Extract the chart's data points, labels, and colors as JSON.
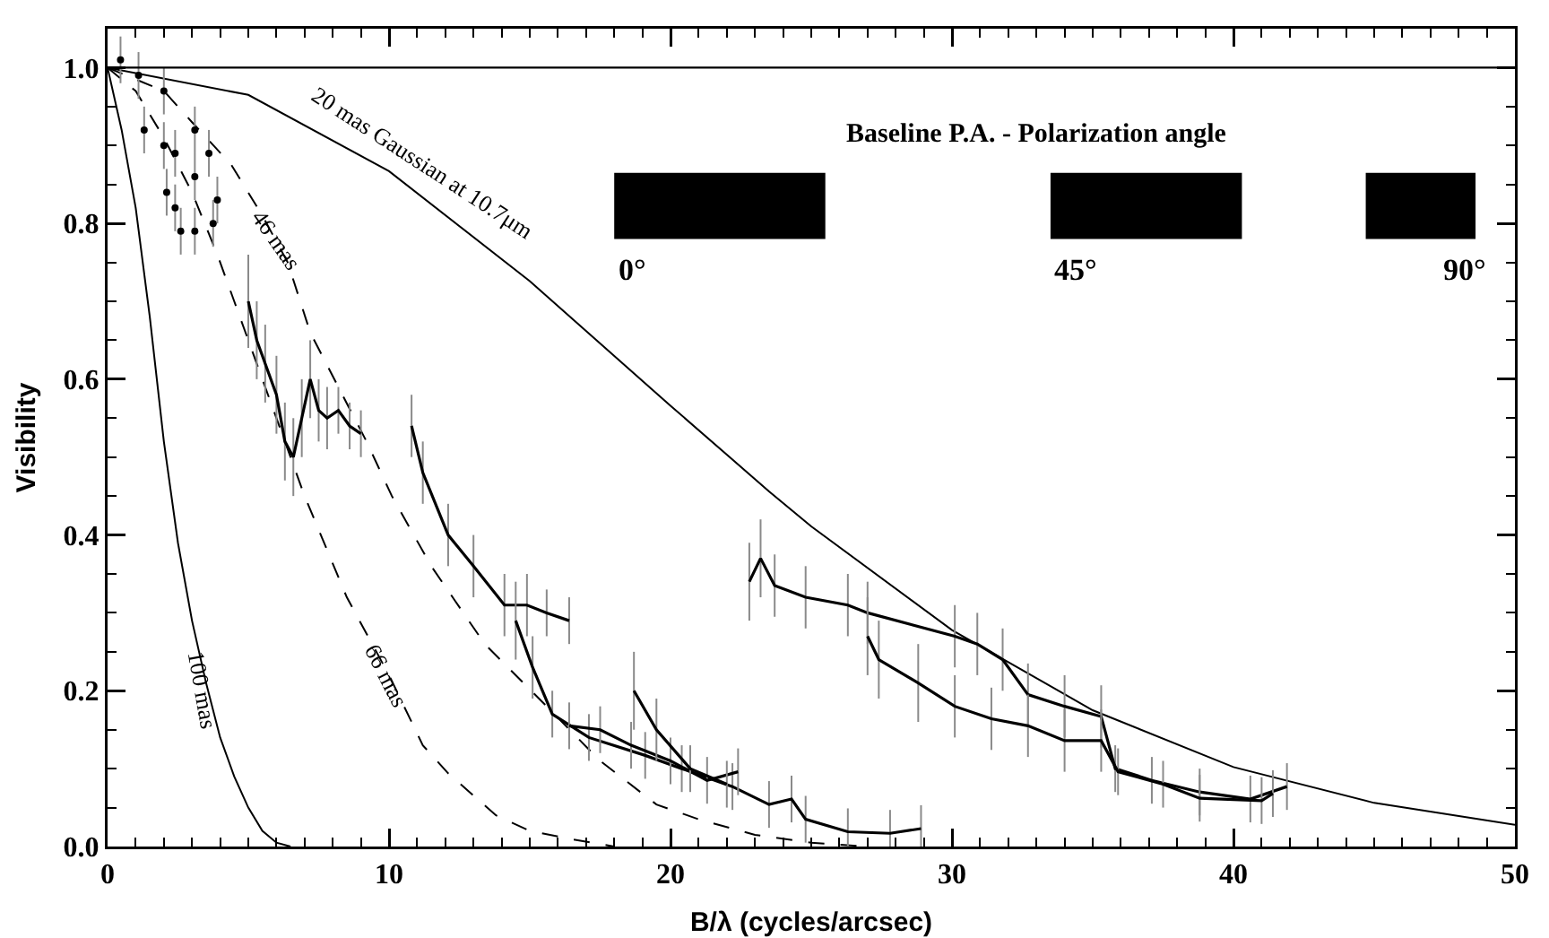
{
  "chart_data": {
    "type": "line",
    "xlabel": "B/λ (cycles/arcsec)",
    "ylabel": "Visibility",
    "xlim": [
      0,
      50
    ],
    "ylim": [
      0,
      1.05
    ],
    "xticks": [
      0,
      {
        "value": 1,
        "label": null
      },
      {
        "value": 2,
        "label": null
      },
      {
        "value": 3,
        "label": null
      },
      {
        "value": 4,
        "label": null
      },
      {
        "value": 5,
        "label": null
      },
      {
        "value": 6,
        "label": null
      },
      {
        "value": 7,
        "label": null
      },
      {
        "value": 8,
        "label": null
      },
      {
        "value": 9,
        "label": null
      },
      10,
      {
        "value": 11,
        "label": null
      },
      {
        "value": 12,
        "label": null
      },
      {
        "value": 13,
        "label": null
      },
      {
        "value": 14,
        "label": null
      },
      {
        "value": 15,
        "label": null
      },
      {
        "value": 16,
        "label": null
      },
      {
        "value": 17,
        "label": null
      },
      {
        "value": 18,
        "label": null
      },
      {
        "value": 19,
        "label": null
      },
      20,
      {
        "value": 21,
        "label": null
      },
      {
        "value": 22,
        "label": null
      },
      {
        "value": 23,
        "label": null
      },
      {
        "value": 24,
        "label": null
      },
      {
        "value": 25,
        "label": null
      },
      {
        "value": 26,
        "label": null
      },
      {
        "value": 27,
        "label": null
      },
      {
        "value": 28,
        "label": null
      },
      {
        "value": 29,
        "label": null
      },
      30,
      {
        "value": 31,
        "label": null
      },
      {
        "value": 32,
        "label": null
      },
      {
        "value": 33,
        "label": null
      },
      {
        "value": 34,
        "label": null
      },
      {
        "value": 35,
        "label": null
      },
      {
        "value": 36,
        "label": null
      },
      {
        "value": 37,
        "label": null
      },
      {
        "value": 38,
        "label": null
      },
      {
        "value": 39,
        "label": null
      },
      40,
      {
        "value": 41,
        "label": null
      },
      {
        "value": 42,
        "label": null
      },
      {
        "value": 43,
        "label": null
      },
      {
        "value": 44,
        "label": null
      },
      {
        "value": 45,
        "label": null
      },
      {
        "value": 46,
        "label": null
      },
      {
        "value": 47,
        "label": null
      },
      {
        "value": 48,
        "label": null
      },
      {
        "value": 49,
        "label": null
      },
      50
    ],
    "yticks": [
      {
        "value": 0,
        "label": "0.0"
      },
      {
        "value": 0.05,
        "label": null
      },
      {
        "value": 0.1,
        "label": null
      },
      {
        "value": 0.15,
        "label": null
      },
      0.2,
      {
        "value": 0.25,
        "label": null
      },
      {
        "value": 0.3,
        "label": null
      },
      {
        "value": 0.35,
        "label": null
      },
      0.4,
      {
        "value": 0.45,
        "label": null
      },
      {
        "value": 0.5,
        "label": null
      },
      {
        "value": 0.55,
        "label": null
      },
      0.6,
      {
        "value": 0.65,
        "label": null
      },
      {
        "value": 0.7,
        "label": null
      },
      {
        "value": 0.75,
        "label": null
      },
      0.8,
      {
        "value": 0.85,
        "label": null
      },
      {
        "value": 0.9,
        "label": null
      },
      {
        "value": 0.95,
        "label": null
      },
      {
        "value": 1,
        "label": "1.0"
      },
      {
        "value": 1.05,
        "label": null
      }
    ],
    "grid": false,
    "ref_lines": [
      {
        "axis": "y",
        "value": 1,
        "color": "#000000",
        "line_style": "solid"
      }
    ],
    "series": [
      {
        "color": "#000000",
        "line_style": "solid",
        "x": [
          0,
          5,
          10,
          15,
          20,
          23.5,
          25,
          30,
          35,
          40,
          45,
          50
        ],
        "values": [
          1,
          0.965,
          0.867,
          0.726,
          0.566,
          0.456,
          0.411,
          0.278,
          0.175,
          0.102,
          0.056,
          0.028
        ]
      },
      {
        "color": "#000000",
        "line_style": "dashed",
        "x": [
          0,
          2,
          3,
          4.4,
          5.5,
          6.4,
          7.2,
          8.2,
          9.2,
          10.1,
          11.5,
          13.4,
          15.6,
          17.5,
          19.5,
          21,
          23,
          25,
          27
        ],
        "values": [
          1,
          0.97,
          0.93,
          0.875,
          0.81,
          0.75,
          0.66,
          0.59,
          0.52,
          0.45,
          0.36,
          0.26,
          0.18,
          0.11,
          0.054,
          0.035,
          0.015,
          0.005,
          0
        ]
      },
      {
        "color": "#000000",
        "line_style": "dashed",
        "x": [
          0,
          1,
          2,
          3,
          3.9,
          4.5,
          5.5,
          6.3,
          7,
          8.5,
          10,
          11.2,
          12.1,
          13.8,
          15,
          16.4,
          18
        ],
        "values": [
          1,
          0.97,
          0.91,
          0.84,
          0.76,
          0.7,
          0.6,
          0.52,
          0.45,
          0.32,
          0.22,
          0.13,
          0.094,
          0.04,
          0.02,
          0.01,
          0
        ]
      },
      {
        "color": "#000000",
        "line_style": "solid",
        "x": [
          0,
          0.5,
          1,
          1.5,
          2,
          2.5,
          3,
          3.5,
          4,
          4.5,
          5,
          5.5,
          6,
          6.5
        ],
        "values": [
          1,
          0.92,
          0.82,
          0.68,
          0.52,
          0.39,
          0.29,
          0.21,
          0.14,
          0.09,
          0.05,
          0.02,
          0.005,
          0
        ]
      },
      {
        "type": "scatter",
        "marker": "circle",
        "color": "#000000",
        "x": [
          0.46,
          1.1,
          1.3,
          2,
          2,
          2.1,
          2.4,
          2.4,
          2.6,
          3.1,
          3.1,
          3.1,
          3.6,
          3.75,
          3.9
        ],
        "values": [
          1.01,
          0.99,
          0.92,
          0.97,
          0.9,
          0.84,
          0.89,
          0.82,
          0.79,
          0.92,
          0.86,
          0.79,
          0.89,
          0.8,
          0.83
        ],
        "errors": [
          0.03,
          0.03,
          0.03,
          0.03,
          0.03,
          0.03,
          0.03,
          0.03,
          0.03,
          0.03,
          0.03,
          0.03,
          0.03,
          0.03,
          0.03
        ]
      },
      {
        "color": "#000000",
        "line_style": "solid",
        "x": [
          5,
          5.3,
          5.6,
          6,
          6.3,
          6.6,
          6.9,
          7.2,
          7.5,
          7.8,
          8.2,
          8.6,
          9
        ],
        "values": [
          0.7,
          0.65,
          0.62,
          0.58,
          0.52,
          0.5,
          0.55,
          0.6,
          0.56,
          0.55,
          0.56,
          0.54,
          0.53
        ],
        "errors": [
          0.06,
          0.05,
          0.05,
          0.05,
          0.05,
          0.05,
          0.05,
          0.05,
          0.04,
          0.04,
          0.03,
          0.03,
          0.03
        ]
      },
      {
        "color": "#000000",
        "line_style": "solid",
        "x": [
          10.8,
          11.2,
          12.1,
          13,
          14.1,
          14.9,
          15.6,
          16.4
        ],
        "values": [
          0.54,
          0.48,
          0.4,
          0.36,
          0.31,
          0.31,
          0.3,
          0.29
        ],
        "errors": [
          0.04,
          0.04,
          0.04,
          0.04,
          0.04,
          0.04,
          0.03,
          0.03
        ]
      },
      {
        "color": "#000000",
        "line_style": "solid",
        "x": [
          14.5,
          15.1,
          15.8,
          17.1,
          19.1,
          20.4,
          22.2,
          23.5,
          24.3,
          24.8,
          26.3,
          27.8,
          28.9
        ],
        "values": [
          0.29,
          0.23,
          0.17,
          0.14,
          0.117,
          0.1,
          0.077,
          0.054,
          0.061,
          0.035,
          0.019,
          0.017,
          0.023
        ],
        "errors": [
          0.05,
          0.04,
          0.03,
          0.03,
          0.03,
          0.03,
          0.03,
          0.03,
          0.03,
          0.03,
          0.03,
          0.03,
          0.03
        ]
      },
      {
        "color": "#000000",
        "line_style": "solid",
        "x": [
          16.4,
          17.5,
          18.6,
          20,
          21.3,
          22.4
        ],
        "values": [
          0.155,
          0.15,
          0.13,
          0.11,
          0.085,
          0.096
        ],
        "errors": [
          0.03,
          0.03,
          0.03,
          0.03,
          0.03,
          0.03
        ]
      },
      {
        "color": "#000000",
        "line_style": "solid",
        "x": [
          18.7,
          19.5,
          20.7,
          22
        ],
        "values": [
          0.2,
          0.15,
          0.1,
          0.08
        ],
        "errors": [
          0.05,
          0.04,
          0.03,
          0.03
        ]
      },
      {
        "color": "#000000",
        "line_style": "solid",
        "x": [
          22.8,
          23.2,
          23.7,
          24.8,
          26.3,
          27,
          30.1,
          30.9,
          31.8,
          32.7,
          34,
          35.3,
          35.8,
          37.1,
          38.8,
          40.6,
          41.9
        ],
        "values": [
          0.34,
          0.37,
          0.335,
          0.32,
          0.31,
          0.3,
          0.27,
          0.26,
          0.24,
          0.195,
          0.18,
          0.167,
          0.1,
          0.085,
          0.07,
          0.061,
          0.077
        ],
        "errors": [
          0.05,
          0.05,
          0.04,
          0.04,
          0.04,
          0.04,
          0.04,
          0.04,
          0.04,
          0.04,
          0.04,
          0.04,
          0.03,
          0.03,
          0.03,
          0.03,
          0.03
        ]
      },
      {
        "color": "#000000",
        "line_style": "solid",
        "x": [
          27,
          27.4,
          28.8,
          30.1,
          31.4,
          32.7,
          34,
          35.3,
          35.9,
          37.5,
          38.8,
          41,
          41.4
        ],
        "values": [
          0.27,
          0.24,
          0.21,
          0.18,
          0.164,
          0.155,
          0.136,
          0.136,
          0.096,
          0.08,
          0.062,
          0.059,
          0.068
        ],
        "errors": [
          0.05,
          0.05,
          0.05,
          0.04,
          0.04,
          0.04,
          0.04,
          0.04,
          0.03,
          0.03,
          0.03,
          0.03,
          0.03
        ]
      }
    ],
    "annotations": [
      {
        "text": "20 mas Gaussian at 10.7μm",
        "x": 10.8,
        "y": 0.847
      },
      {
        "text": "46 mas",
        "x": 6,
        "y": 0.78
      },
      {
        "text": "66 mas",
        "x": 9.9,
        "y": 0.22
      },
      {
        "text": "100 mas",
        "x": 3.4,
        "y": 0.2
      },
      "Baseline P.A. - Polarization angle",
      "0°",
      "45°",
      "90°"
    ]
  }
}
